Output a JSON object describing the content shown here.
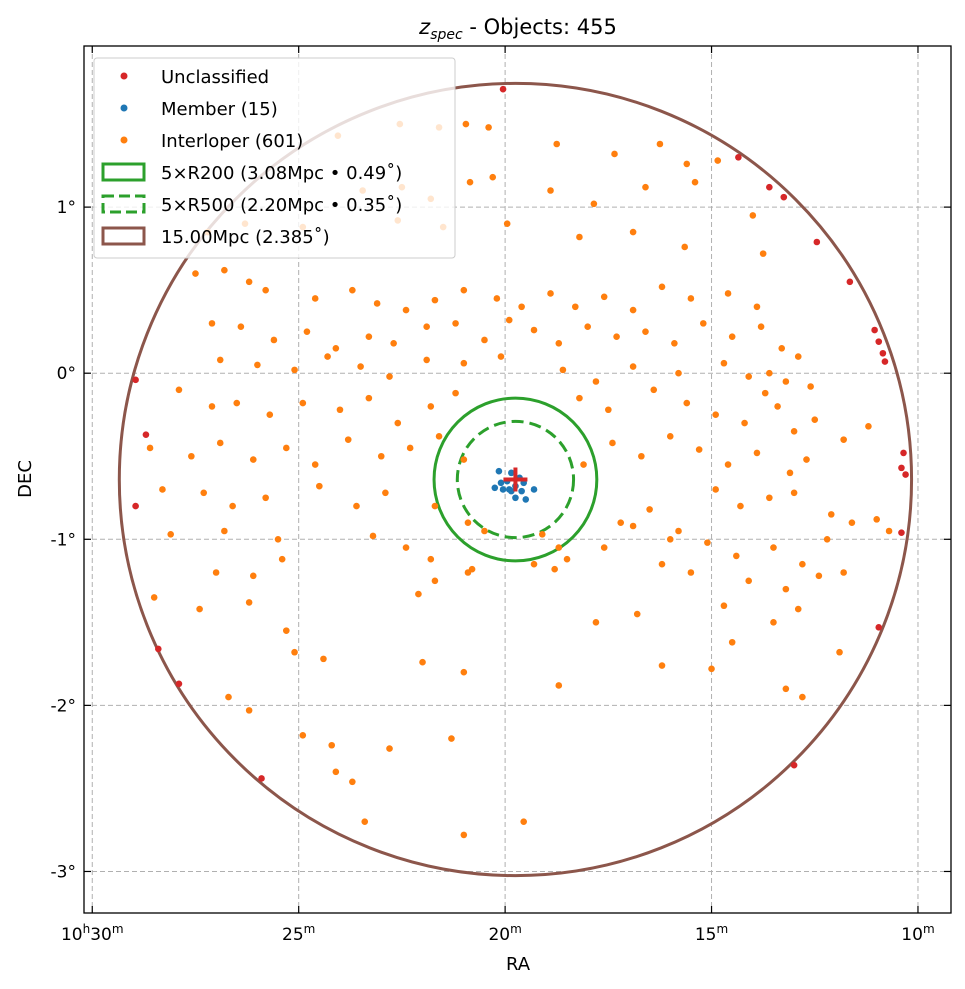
{
  "chart_data": {
    "type": "scatter",
    "title": {
      "main": "z",
      "sub": "spec",
      "rest": " - Objects: 455"
    },
    "xlabel": "RA",
    "ylabel": "DEC",
    "x_unit": "minutes of RA (10h + m)",
    "xlim": [
      30.2,
      9.2
    ],
    "ylim": [
      -3.25,
      1.97
    ],
    "x_direction": "reversed",
    "grid": true,
    "legend_position": "upper-left",
    "x_ticks": [
      {
        "value": 30,
        "main": "10",
        "sup1": "h",
        "mid": "30",
        "sup2": "m"
      },
      {
        "value": 25,
        "main": "",
        "sup1": "",
        "mid": "25",
        "sup2": "m"
      },
      {
        "value": 20,
        "main": "",
        "sup1": "",
        "mid": "20",
        "sup2": "m"
      },
      {
        "value": 15,
        "main": "",
        "sup1": "",
        "mid": "15",
        "sup2": "m"
      },
      {
        "value": 10,
        "main": "",
        "sup1": "",
        "mid": "10",
        "sup2": "m"
      }
    ],
    "y_ticks": [
      {
        "value": 1,
        "label": "1°"
      },
      {
        "value": 0,
        "label": "0°"
      },
      {
        "value": -1,
        "label": "-1°"
      },
      {
        "value": -2,
        "label": "-2°"
      },
      {
        "value": -3,
        "label": "-3°"
      }
    ],
    "legend": [
      {
        "label": "Unclassified",
        "kind": "dot",
        "color": "#d62728"
      },
      {
        "label": "Member (15)",
        "kind": "dot",
        "color": "#1f77b4"
      },
      {
        "label": "Interloper (601)",
        "kind": "dot",
        "color": "#ff7f0e"
      },
      {
        "label": "5×R200 (3.08Mpc • 0.49˚)",
        "kind": "rect-solid",
        "color": "#2ca02c"
      },
      {
        "label": "5×R500 (2.20Mpc • 0.35˚)",
        "kind": "rect-dashed",
        "color": "#2ca02c"
      },
      {
        "label": "15.00Mpc (2.385˚)",
        "kind": "rect-solid",
        "color": "#8c564b"
      }
    ],
    "center": {
      "ra": 19.75,
      "dec": -0.64,
      "color": "#d62728",
      "marker": "plus"
    },
    "circles": [
      {
        "name": "5×R200",
        "radius_deg": 0.49,
        "color": "#2ca02c",
        "dashed": false
      },
      {
        "name": "5×R500",
        "radius_deg": 0.35,
        "color": "#2ca02c",
        "dashed": true
      },
      {
        "name": "15.00Mpc",
        "radius_deg": 2.385,
        "color": "#8c564b",
        "dashed": false
      }
    ],
    "series": [
      {
        "name": "Unclassified",
        "color": "#d62728",
        "points": [
          [
            20.05,
            1.71
          ],
          [
            14.35,
            1.3
          ],
          [
            13.6,
            1.12
          ],
          [
            13.25,
            1.06
          ],
          [
            12.45,
            0.79
          ],
          [
            11.65,
            0.55
          ],
          [
            11.05,
            0.26
          ],
          [
            10.95,
            0.19
          ],
          [
            10.85,
            0.12
          ],
          [
            10.8,
            0.07
          ],
          [
            28.95,
            -0.04
          ],
          [
            28.7,
            -0.37
          ],
          [
            28.95,
            -0.8
          ],
          [
            10.35,
            -0.48
          ],
          [
            10.4,
            -0.57
          ],
          [
            10.3,
            -0.61
          ],
          [
            10.4,
            -0.96
          ],
          [
            10.95,
            -1.53
          ],
          [
            28.4,
            -1.66
          ],
          [
            27.9,
            -1.87
          ],
          [
            25.9,
            -2.44
          ],
          [
            13.0,
            -2.36
          ]
        ]
      },
      {
        "name": "Member",
        "color": "#1f77b4",
        "points": [
          [
            20.15,
            -0.59
          ],
          [
            19.85,
            -0.6
          ],
          [
            19.95,
            -0.65
          ],
          [
            19.65,
            -0.63
          ],
          [
            19.55,
            -0.66
          ],
          [
            19.75,
            -0.68
          ],
          [
            19.9,
            -0.7
          ],
          [
            20.05,
            -0.7
          ],
          [
            19.6,
            -0.71
          ],
          [
            19.85,
            -0.71
          ],
          [
            19.3,
            -0.7
          ],
          [
            20.25,
            -0.69
          ],
          [
            19.75,
            -0.75
          ],
          [
            19.5,
            -0.76
          ],
          [
            20.1,
            -0.66
          ]
        ]
      },
      {
        "name": "Interloper",
        "color": "#ff7f0e",
        "points": [
          [
            24.05,
            1.43
          ],
          [
            22.55,
            1.5
          ],
          [
            21.6,
            1.48
          ],
          [
            20.95,
            1.5
          ],
          [
            20.4,
            1.48
          ],
          [
            18.75,
            1.38
          ],
          [
            17.35,
            1.32
          ],
          [
            16.25,
            1.38
          ],
          [
            15.6,
            1.26
          ],
          [
            14.85,
            1.28
          ],
          [
            23.45,
            1.1
          ],
          [
            22.5,
            1.12
          ],
          [
            21.8,
            1.05
          ],
          [
            20.85,
            1.15
          ],
          [
            20.3,
            1.18
          ],
          [
            18.9,
            1.1
          ],
          [
            17.85,
            1.02
          ],
          [
            16.6,
            1.12
          ],
          [
            15.4,
            1.15
          ],
          [
            14.0,
            0.95
          ],
          [
            27.2,
            0.85
          ],
          [
            26.3,
            0.9
          ],
          [
            24.9,
            0.88
          ],
          [
            22.6,
            0.92
          ],
          [
            21.5,
            0.88
          ],
          [
            19.95,
            0.9
          ],
          [
            18.2,
            0.82
          ],
          [
            16.9,
            0.85
          ],
          [
            15.65,
            0.76
          ],
          [
            13.75,
            0.72
          ],
          [
            27.5,
            0.6
          ],
          [
            26.8,
            0.62
          ],
          [
            26.2,
            0.55
          ],
          [
            25.8,
            0.5
          ],
          [
            24.6,
            0.45
          ],
          [
            23.7,
            0.5
          ],
          [
            23.1,
            0.42
          ],
          [
            22.4,
            0.38
          ],
          [
            21.7,
            0.44
          ],
          [
            21.0,
            0.5
          ],
          [
            20.2,
            0.45
          ],
          [
            19.6,
            0.4
          ],
          [
            18.9,
            0.48
          ],
          [
            18.3,
            0.4
          ],
          [
            17.6,
            0.46
          ],
          [
            16.9,
            0.38
          ],
          [
            16.2,
            0.52
          ],
          [
            15.5,
            0.45
          ],
          [
            14.6,
            0.48
          ],
          [
            13.9,
            0.4
          ],
          [
            27.1,
            0.3
          ],
          [
            26.4,
            0.28
          ],
          [
            25.6,
            0.2
          ],
          [
            24.8,
            0.25
          ],
          [
            24.1,
            0.15
          ],
          [
            23.3,
            0.22
          ],
          [
            22.7,
            0.18
          ],
          [
            21.9,
            0.28
          ],
          [
            21.2,
            0.3
          ],
          [
            20.5,
            0.2
          ],
          [
            19.9,
            0.32
          ],
          [
            19.3,
            0.26
          ],
          [
            18.7,
            0.18
          ],
          [
            18.0,
            0.28
          ],
          [
            17.3,
            0.22
          ],
          [
            16.6,
            0.25
          ],
          [
            15.9,
            0.18
          ],
          [
            15.2,
            0.3
          ],
          [
            14.5,
            0.22
          ],
          [
            13.8,
            0.28
          ],
          [
            13.3,
            0.15
          ],
          [
            12.9,
            0.1
          ],
          [
            26.9,
            0.08
          ],
          [
            26.0,
            0.05
          ],
          [
            25.1,
            0.02
          ],
          [
            24.3,
            0.1
          ],
          [
            23.5,
            0.04
          ],
          [
            22.8,
            -0.02
          ],
          [
            21.9,
            0.08
          ],
          [
            21.0,
            0.06
          ],
          [
            20.1,
            0.1
          ],
          [
            18.6,
            0.02
          ],
          [
            17.8,
            -0.05
          ],
          [
            16.9,
            0.04
          ],
          [
            15.8,
            0.0
          ],
          [
            14.7,
            0.06
          ],
          [
            14.1,
            -0.02
          ],
          [
            13.6,
            0.0
          ],
          [
            13.2,
            -0.05
          ],
          [
            12.6,
            -0.08
          ],
          [
            27.9,
            -0.1
          ],
          [
            27.1,
            -0.2
          ],
          [
            26.5,
            -0.18
          ],
          [
            25.7,
            -0.25
          ],
          [
            24.9,
            -0.18
          ],
          [
            24.0,
            -0.22
          ],
          [
            23.3,
            -0.15
          ],
          [
            22.6,
            -0.3
          ],
          [
            21.8,
            -0.2
          ],
          [
            21.2,
            -0.12
          ],
          [
            18.2,
            -0.15
          ],
          [
            17.5,
            -0.22
          ],
          [
            16.4,
            -0.1
          ],
          [
            15.6,
            -0.18
          ],
          [
            14.9,
            -0.25
          ],
          [
            14.2,
            -0.3
          ],
          [
            13.7,
            -0.12
          ],
          [
            13.4,
            -0.2
          ],
          [
            13.0,
            -0.35
          ],
          [
            12.5,
            -0.28
          ],
          [
            11.8,
            -0.4
          ],
          [
            11.2,
            -0.32
          ],
          [
            28.6,
            -0.45
          ],
          [
            27.6,
            -0.5
          ],
          [
            26.9,
            -0.42
          ],
          [
            26.1,
            -0.52
          ],
          [
            25.3,
            -0.45
          ],
          [
            24.6,
            -0.55
          ],
          [
            23.8,
            -0.4
          ],
          [
            23.0,
            -0.5
          ],
          [
            22.3,
            -0.45
          ],
          [
            21.6,
            -0.38
          ],
          [
            21.0,
            -0.52
          ],
          [
            18.1,
            -0.55
          ],
          [
            17.4,
            -0.42
          ],
          [
            16.7,
            -0.5
          ],
          [
            16.0,
            -0.38
          ],
          [
            15.3,
            -0.46
          ],
          [
            14.6,
            -0.55
          ],
          [
            13.9,
            -0.48
          ],
          [
            13.1,
            -0.6
          ],
          [
            12.7,
            -0.52
          ],
          [
            28.3,
            -0.7
          ],
          [
            27.3,
            -0.72
          ],
          [
            26.6,
            -0.8
          ],
          [
            25.8,
            -0.75
          ],
          [
            24.5,
            -0.68
          ],
          [
            23.6,
            -0.8
          ],
          [
            22.9,
            -0.72
          ],
          [
            21.7,
            -0.8
          ],
          [
            20.9,
            -0.9
          ],
          [
            20.5,
            -0.95
          ],
          [
            19.1,
            -0.97
          ],
          [
            18.7,
            -1.05
          ],
          [
            17.2,
            -0.9
          ],
          [
            16.5,
            -0.82
          ],
          [
            15.8,
            -0.95
          ],
          [
            14.9,
            -0.7
          ],
          [
            14.3,
            -0.8
          ],
          [
            13.6,
            -0.75
          ],
          [
            13.0,
            -0.72
          ],
          [
            12.1,
            -0.85
          ],
          [
            11.6,
            -0.9
          ],
          [
            11.0,
            -0.88
          ],
          [
            10.7,
            -0.95
          ],
          [
            28.1,
            -0.97
          ],
          [
            26.8,
            -0.95
          ],
          [
            25.5,
            -1.0
          ],
          [
            23.2,
            -0.98
          ],
          [
            22.4,
            -1.05
          ],
          [
            21.8,
            -1.12
          ],
          [
            20.8,
            -1.18
          ],
          [
            19.3,
            -1.15
          ],
          [
            18.5,
            -1.12
          ],
          [
            17.6,
            -1.05
          ],
          [
            16.9,
            -0.92
          ],
          [
            16.0,
            -1.0
          ],
          [
            15.1,
            -1.02
          ],
          [
            14.4,
            -1.1
          ],
          [
            13.5,
            -1.05
          ],
          [
            12.8,
            -1.15
          ],
          [
            12.2,
            -1.0
          ],
          [
            27.0,
            -1.2
          ],
          [
            26.1,
            -1.22
          ],
          [
            25.4,
            -1.12
          ],
          [
            21.7,
            -1.25
          ],
          [
            20.9,
            -1.2
          ],
          [
            18.8,
            -1.18
          ],
          [
            16.2,
            -1.15
          ],
          [
            15.5,
            -1.2
          ],
          [
            14.1,
            -1.25
          ],
          [
            13.2,
            -1.3
          ],
          [
            12.4,
            -1.22
          ],
          [
            11.8,
            -1.2
          ],
          [
            28.5,
            -1.35
          ],
          [
            27.4,
            -1.42
          ],
          [
            26.2,
            -1.38
          ],
          [
            25.3,
            -1.55
          ],
          [
            22.1,
            -1.33
          ],
          [
            17.8,
            -1.5
          ],
          [
            16.8,
            -1.45
          ],
          [
            14.7,
            -1.4
          ],
          [
            13.5,
            -1.5
          ],
          [
            12.9,
            -1.42
          ],
          [
            25.1,
            -1.68
          ],
          [
            24.4,
            -1.72
          ],
          [
            22.0,
            -1.74
          ],
          [
            21.0,
            -1.8
          ],
          [
            18.7,
            -1.88
          ],
          [
            16.2,
            -1.76
          ],
          [
            15.0,
            -1.78
          ],
          [
            14.5,
            -1.62
          ],
          [
            13.2,
            -1.9
          ],
          [
            12.8,
            -1.95
          ],
          [
            11.9,
            -1.68
          ],
          [
            26.7,
            -1.95
          ],
          [
            26.2,
            -2.03
          ],
          [
            24.9,
            -2.18
          ],
          [
            24.2,
            -2.24
          ],
          [
            22.8,
            -2.26
          ],
          [
            21.3,
            -2.2
          ],
          [
            24.1,
            -2.4
          ],
          [
            23.7,
            -2.46
          ],
          [
            23.4,
            -2.7
          ],
          [
            21.0,
            -2.78
          ],
          [
            19.55,
            -2.7
          ]
        ]
      }
    ]
  }
}
